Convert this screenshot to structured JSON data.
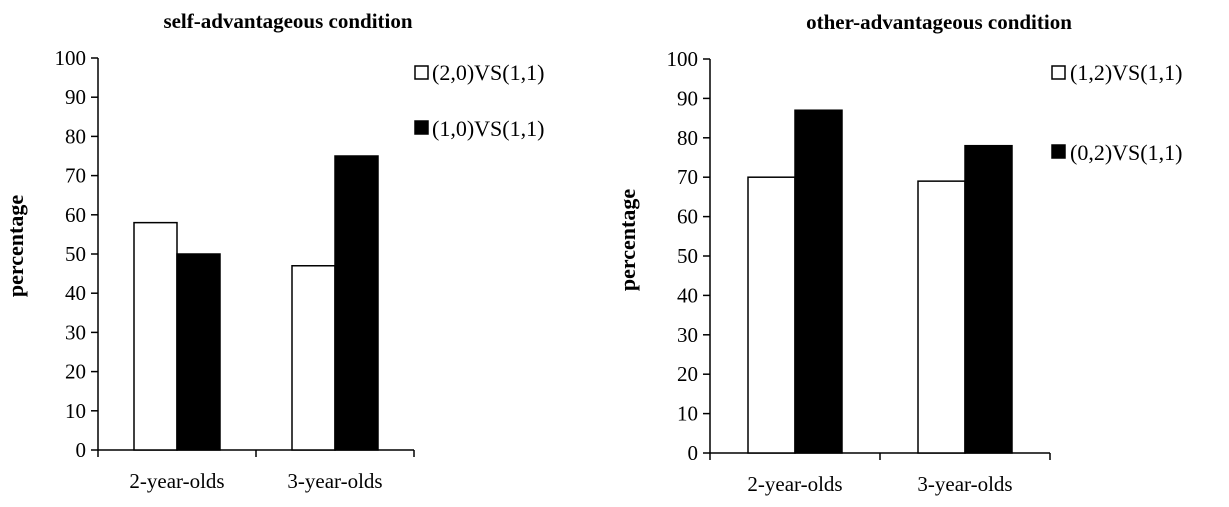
{
  "chart_data": [
    {
      "type": "bar",
      "title": "self-advantageous  condition",
      "xlabel": "",
      "ylabel": "percentage",
      "ylim": [
        0,
        100
      ],
      "yticks": [
        0,
        10,
        20,
        30,
        40,
        50,
        60,
        70,
        80,
        90,
        100
      ],
      "categories": [
        "2-year-olds",
        "3-year-olds"
      ],
      "legend_position": "top-right",
      "grid": false,
      "series": [
        {
          "name": "(2,0)VS(1,1)",
          "color": "#ffffff",
          "values": [
            58,
            47
          ]
        },
        {
          "name": "(1,0)VS(1,1)",
          "color": "#000000",
          "values": [
            50,
            75
          ]
        }
      ]
    },
    {
      "type": "bar",
      "title": "other-advantageous condition",
      "xlabel": "",
      "ylabel": "percentage",
      "ylim": [
        0,
        100
      ],
      "yticks": [
        0,
        10,
        20,
        30,
        40,
        50,
        60,
        70,
        80,
        90,
        100
      ],
      "categories": [
        "2-year-olds",
        "3-year-olds"
      ],
      "legend_position": "top-right",
      "grid": false,
      "series": [
        {
          "name": "(1,2)VS(1,1)",
          "color": "#ffffff",
          "values": [
            70,
            69
          ]
        },
        {
          "name": "(0,2)VS(1,1)",
          "color": "#000000",
          "values": [
            87,
            78
          ]
        }
      ]
    }
  ]
}
